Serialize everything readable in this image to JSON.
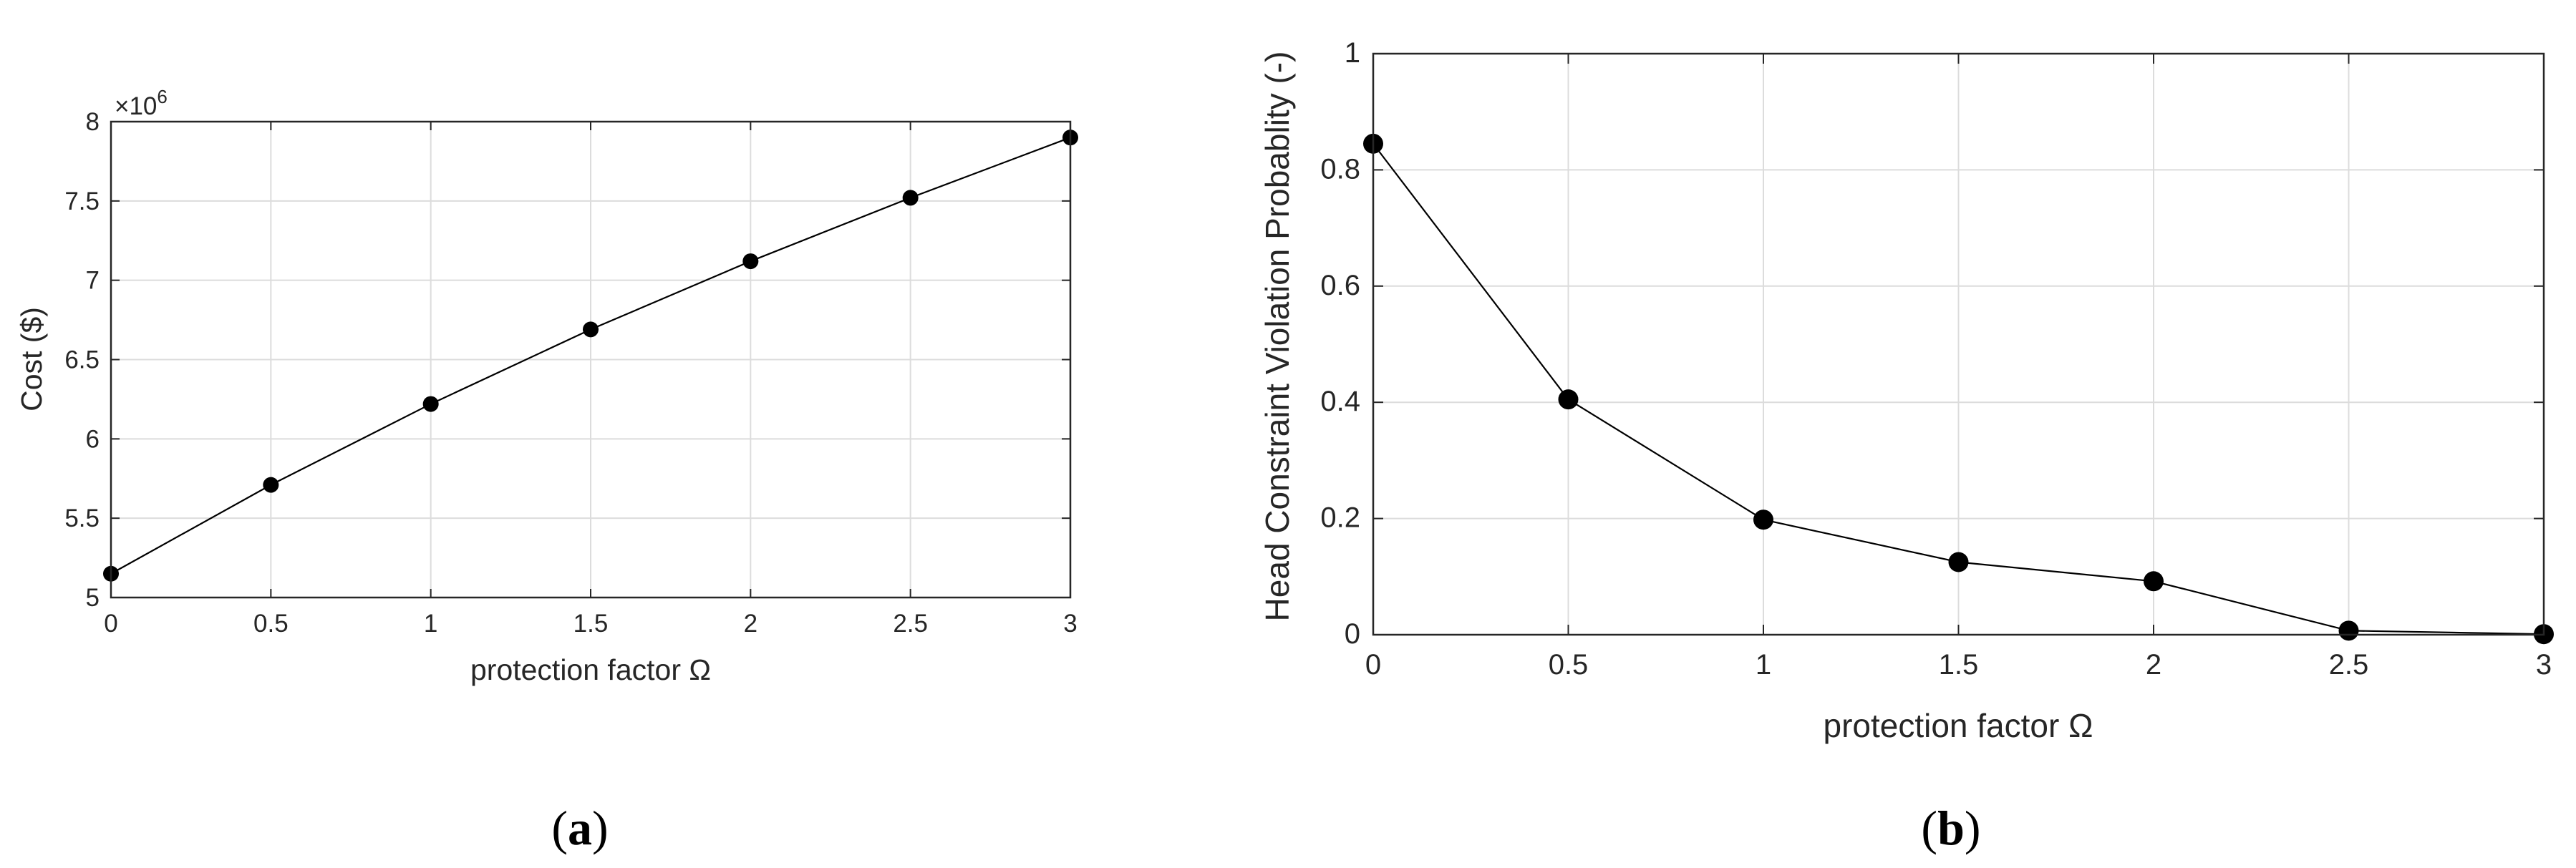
{
  "chart_data": [
    {
      "type": "line",
      "panel_label": "(a)",
      "panel_open": "(",
      "panel_letter": "a",
      "panel_close": ")",
      "xlabel": "protection factor Ω",
      "ylabel": "Cost ($)",
      "y_exponent_label": "×10",
      "y_exponent_power": "6",
      "xlim": [
        0,
        3
      ],
      "ylim": [
        5,
        8
      ],
      "xticks": [
        "0",
        "0.5",
        "1",
        "1.5",
        "2",
        "2.5",
        "3"
      ],
      "yticks": [
        "5",
        "5.5",
        "6",
        "6.5",
        "7",
        "7.5",
        "8"
      ],
      "grid": true,
      "markers": "filled circle",
      "line_color": "#000000",
      "series": [
        {
          "x": [
            0,
            0.5,
            1,
            1.5,
            2,
            2.5,
            3
          ],
          "y": [
            5.15,
            5.71,
            6.22,
            6.69,
            7.12,
            7.52,
            7.9
          ]
        }
      ]
    },
    {
      "type": "line",
      "panel_label": "(b)",
      "panel_open": "(",
      "panel_letter": "b",
      "panel_close": ")",
      "xlabel": "protection factor Ω",
      "ylabel": "Head Constraint Violation Probablity (-)",
      "xlim": [
        0,
        3
      ],
      "ylim": [
        0,
        1
      ],
      "xticks": [
        "0",
        "0.5",
        "1",
        "1.5",
        "2",
        "2.5",
        "3"
      ],
      "yticks": [
        "0",
        "0.2",
        "0.4",
        "0.6",
        "0.8",
        "1"
      ],
      "grid": true,
      "markers": "filled circle",
      "line_color": "#000000",
      "series": [
        {
          "x": [
            0,
            0.5,
            1,
            1.5,
            2,
            2.5,
            3
          ],
          "y": [
            0.845,
            0.405,
            0.198,
            0.125,
            0.092,
            0.007,
            0.001
          ]
        }
      ]
    }
  ]
}
